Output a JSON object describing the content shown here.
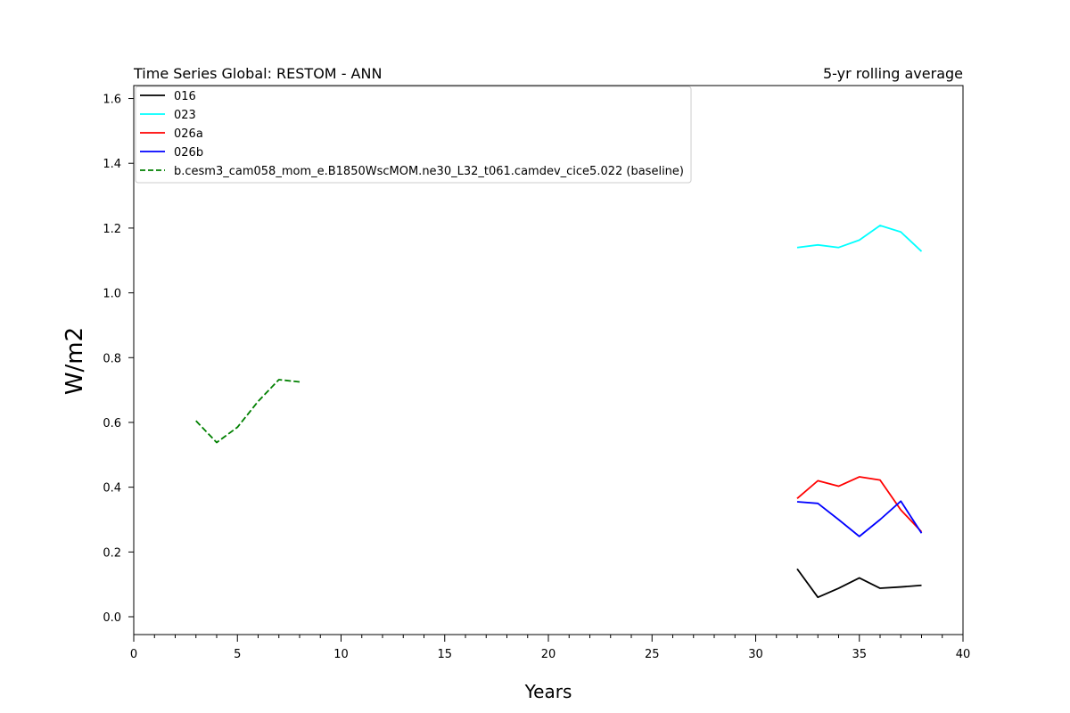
{
  "chart_data": {
    "type": "line",
    "title_left": "Time Series Global: RESTOM - ANN",
    "title_right": "5-yr rolling average",
    "xlabel": "Years",
    "ylabel": "W/m2",
    "xlim": [
      0,
      40
    ],
    "ylim": [
      -0.055,
      1.64
    ],
    "xticks": [
      0,
      5,
      10,
      15,
      20,
      25,
      30,
      35,
      40
    ],
    "yticks": [
      0.0,
      0.2,
      0.4,
      0.6,
      0.8,
      1.0,
      1.2,
      1.4,
      1.6
    ],
    "ytick_labels": [
      "0.0",
      "0.2",
      "0.4",
      "0.6",
      "0.8",
      "1.0",
      "1.2",
      "1.4",
      "1.6"
    ],
    "grid": false,
    "legend_position": "upper-left",
    "series": [
      {
        "name": "016",
        "color": "#000000",
        "dash": "solid",
        "x": [
          32,
          33,
          34,
          35,
          36,
          37,
          38
        ],
        "y": [
          0.148,
          0.06,
          0.088,
          0.12,
          0.088,
          0.092,
          0.097
        ]
      },
      {
        "name": "023",
        "color": "#00ffff",
        "dash": "solid",
        "x": [
          32,
          33,
          34,
          35,
          36,
          37,
          38
        ],
        "y": [
          1.14,
          1.148,
          1.14,
          1.163,
          1.208,
          1.188,
          1.128
        ]
      },
      {
        "name": "026a",
        "color": "#ff0000",
        "dash": "solid",
        "x": [
          32,
          33,
          34,
          35,
          36,
          37,
          38
        ],
        "y": [
          0.365,
          0.42,
          0.403,
          0.432,
          0.422,
          0.33,
          0.262
        ]
      },
      {
        "name": "026b",
        "color": "#0000ff",
        "dash": "solid",
        "x": [
          32,
          33,
          34,
          35,
          36,
          37,
          38
        ],
        "y": [
          0.355,
          0.35,
          0.3,
          0.248,
          0.3,
          0.357,
          0.258
        ]
      },
      {
        "name": "b.cesm3_cam058_mom_e.B1850WscMOM.ne30_L32_t061.camdev_cice5.022 (baseline)",
        "color": "#008000",
        "dash": "dashed",
        "x": [
          3,
          4,
          5,
          6,
          7,
          8
        ],
        "y": [
          0.605,
          0.538,
          0.585,
          0.665,
          0.732,
          0.725
        ]
      }
    ]
  }
}
